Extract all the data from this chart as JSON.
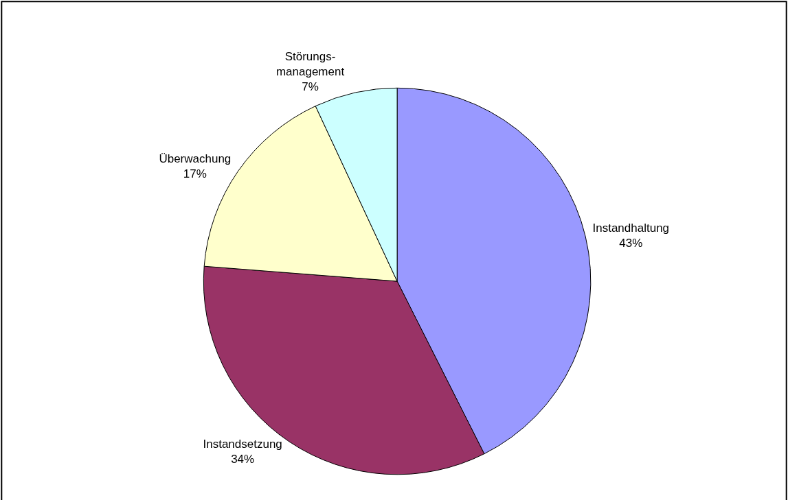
{
  "chart_data": {
    "type": "pie",
    "categories": [
      "Instandhaltung",
      "Instandsetzung",
      "Überwachung",
      "Störungs-\nmanagement"
    ],
    "values": [
      43,
      34,
      17,
      7
    ],
    "colors": [
      "#9999ff",
      "#993366",
      "#ffffcc",
      "#ccffff"
    ],
    "value_labels": [
      "43%",
      "34%",
      "17%",
      "7%"
    ],
    "legend": false
  }
}
